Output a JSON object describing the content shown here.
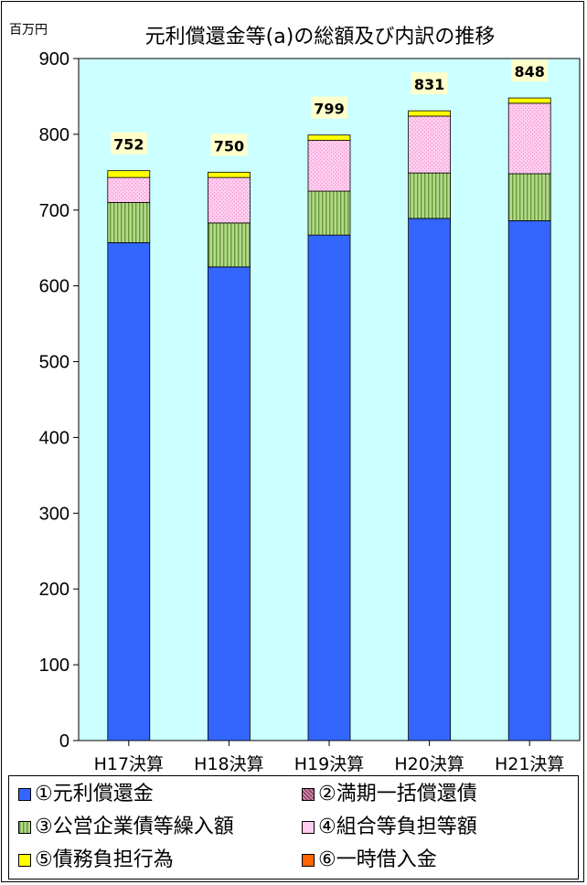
{
  "chart_data": {
    "type": "bar",
    "stacked": true,
    "title": "元利償還金等(a)の総額及び内訳の推移",
    "unit_label": "百万円",
    "ylim": [
      0,
      900
    ],
    "yticks": [
      0,
      100,
      200,
      300,
      400,
      500,
      600,
      700,
      800,
      900
    ],
    "categories": [
      "H17決算",
      "H18決算",
      "H19決算",
      "H20決算",
      "H21決算"
    ],
    "totals": [
      752,
      750,
      799,
      831,
      848
    ],
    "series": [
      {
        "name": "①元利償還金",
        "color": "#3366ff",
        "pattern": "solid",
        "values": [
          657,
          625,
          667,
          689,
          686
        ]
      },
      {
        "name": "②満期一括償還債",
        "color": "#993366",
        "pattern": "dots",
        "values": [
          0,
          0,
          0,
          0,
          0
        ]
      },
      {
        "name": "③公営企業債等繰入額",
        "color": "#b3d98c",
        "pattern": "vstripes",
        "values": [
          53,
          58,
          58,
          60,
          62
        ]
      },
      {
        "name": "④組合等負担等額",
        "color": "#ffccee",
        "pattern": "light-dots",
        "values": [
          33,
          60,
          67,
          75,
          93
        ]
      },
      {
        "name": "⑤債務負担行為",
        "color": "#ffff00",
        "pattern": "solid",
        "values": [
          9,
          7,
          7,
          7,
          7
        ]
      },
      {
        "name": "⑥一時借入金",
        "color": "#ff6600",
        "pattern": "solid",
        "values": [
          0,
          0,
          0,
          0,
          0
        ]
      }
    ],
    "plot_bg": "#ccffff",
    "grid": false,
    "legend_position": "bottom"
  }
}
